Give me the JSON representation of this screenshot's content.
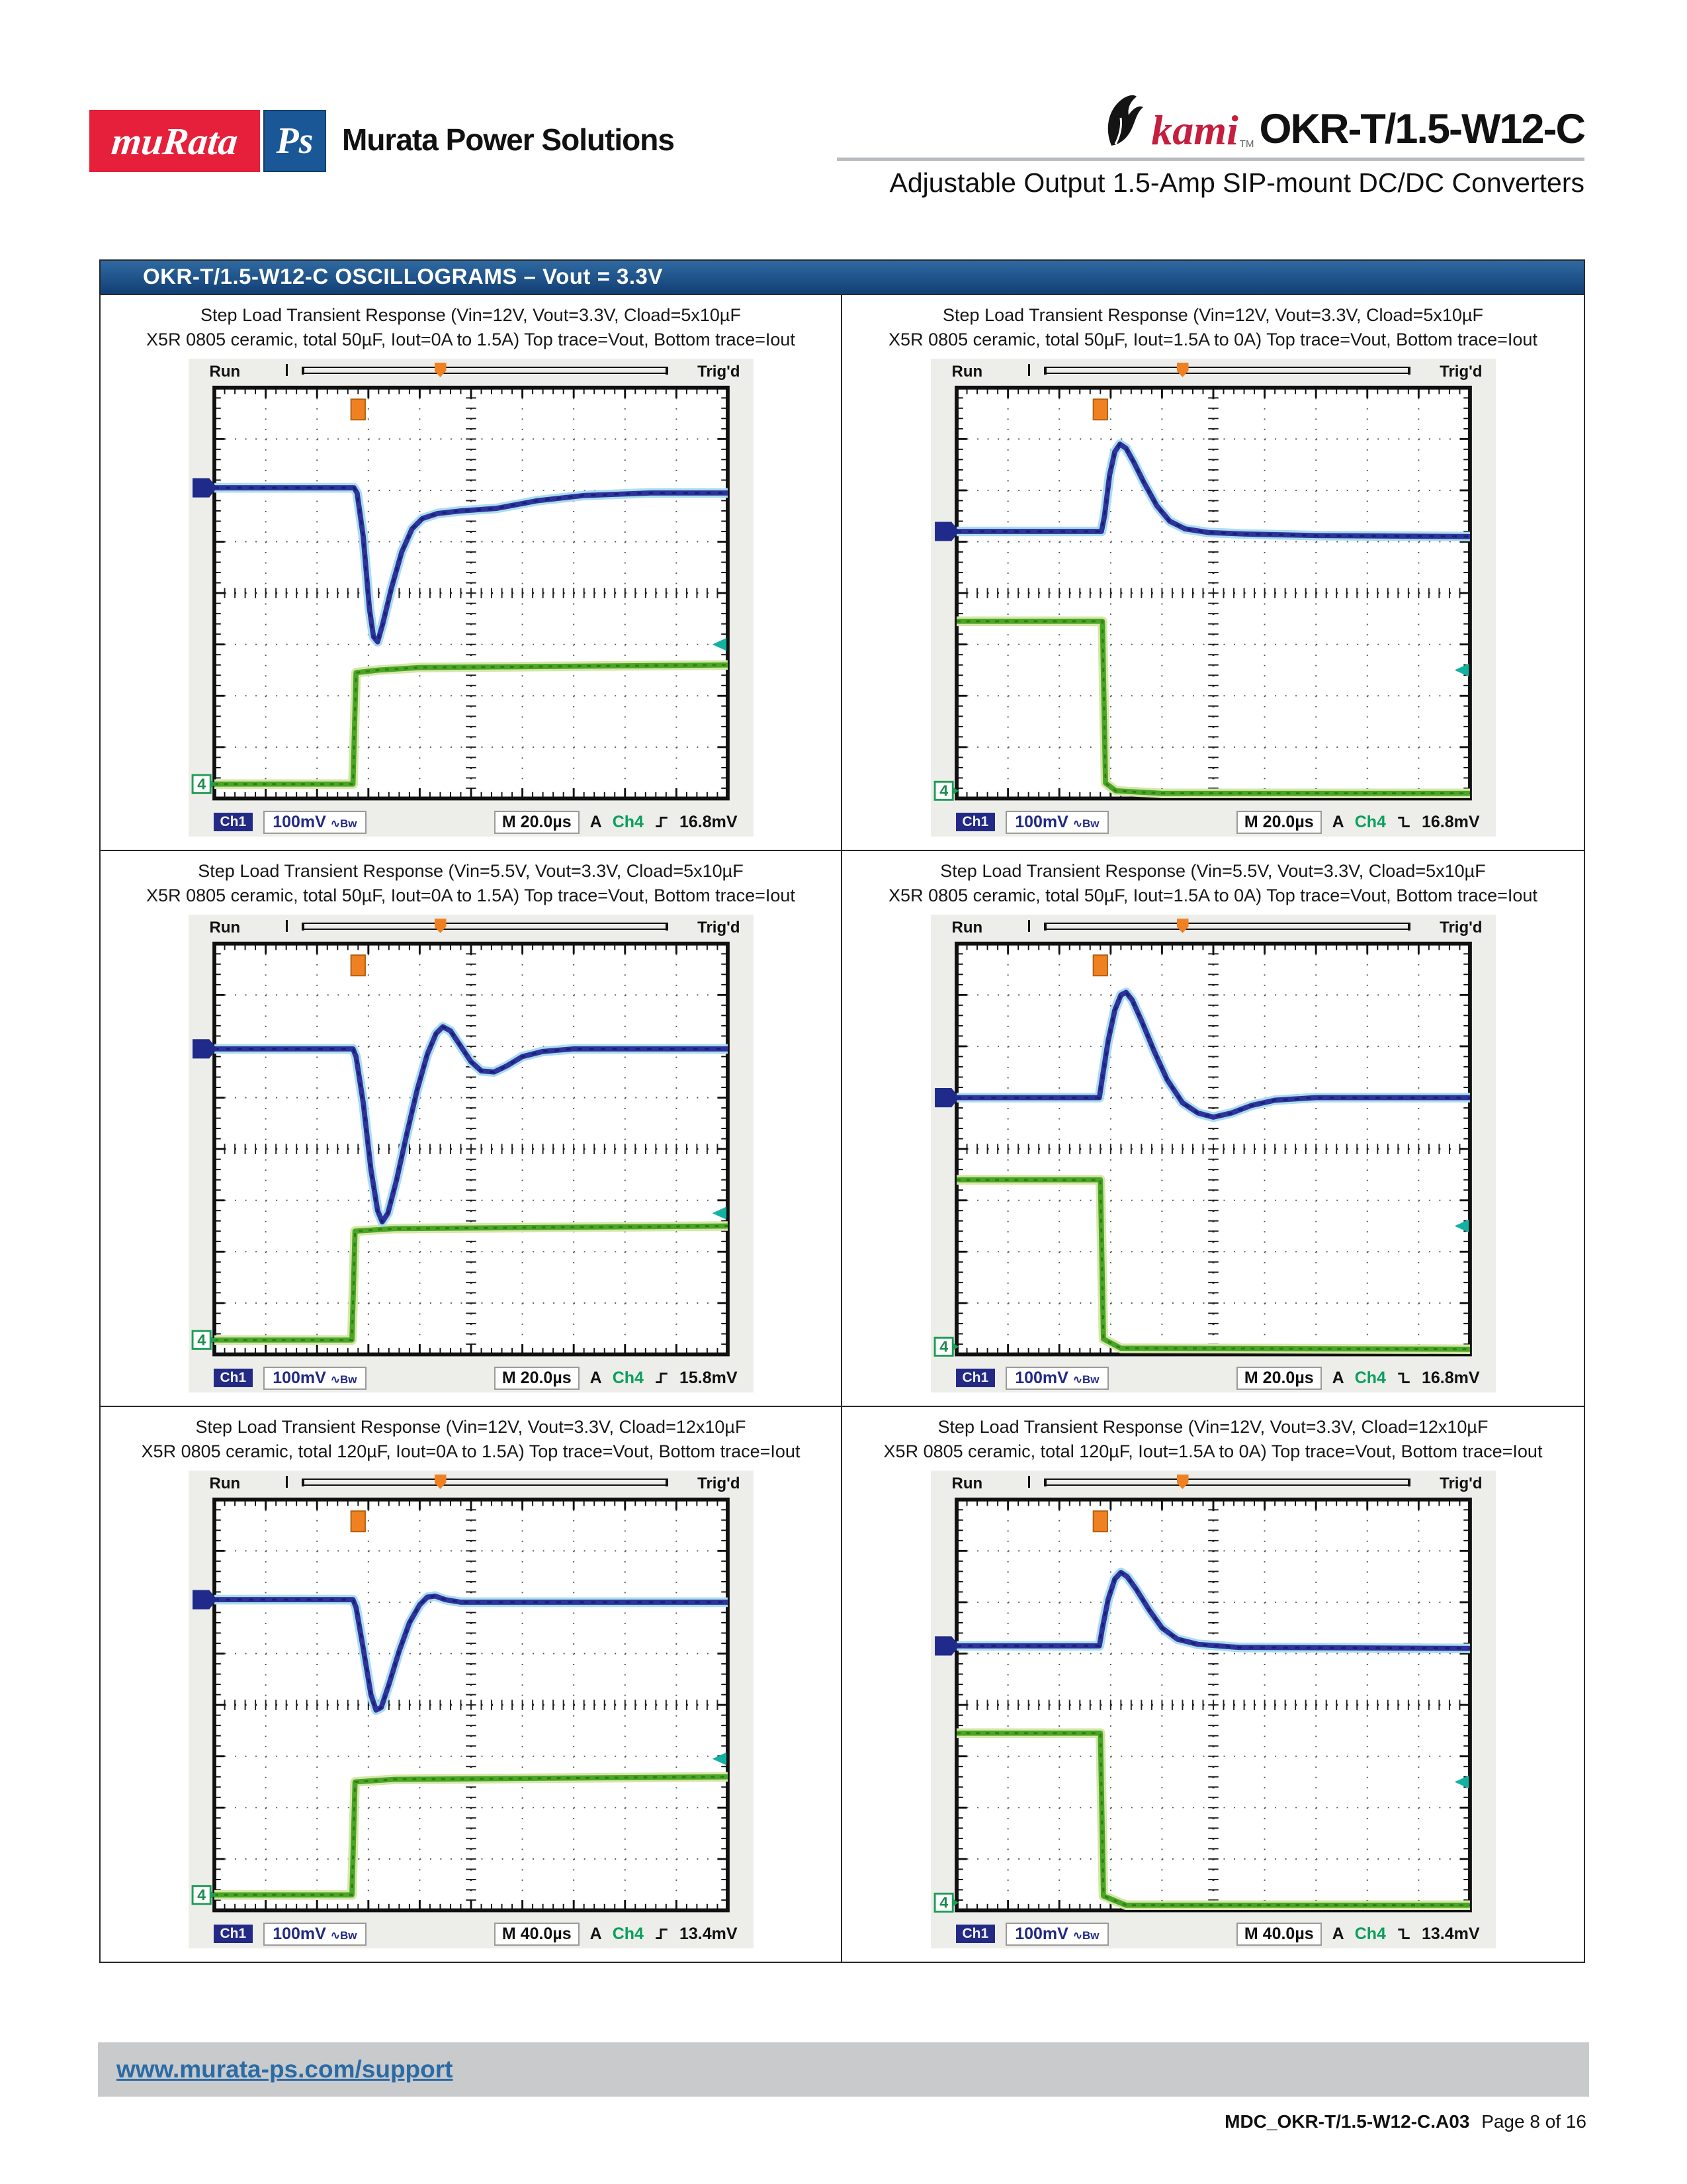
{
  "header": {
    "logo_murata_text": "muRata",
    "logo_ps_text": "Ps",
    "company": "Murata Power Solutions",
    "brand_okami": "kami",
    "brand_tm": "TM",
    "product": "OKR-T/1.5-W12-C",
    "subtitle": "Adjustable Output 1.5-Amp SIP-mount DC/DC Converters"
  },
  "banner": {
    "title": "OKR-T/1.5-W12-C OSCILLOGRAMS – Vout = 3.3V",
    "bg_color": "#123f74"
  },
  "scope_common": {
    "run": "Run",
    "trigd": "Trig'd",
    "ch1_box": "Ch1",
    "volt_label": "100mV",
    "coupling": "∿Bw",
    "a_label": "A",
    "ch4_label": "Ch4",
    "ch4_marker": "4"
  },
  "colors": {
    "murata_red": "#e6203a",
    "ps_blue": "#1a5796",
    "banner_blue": "#123f74",
    "okami_red": "#c41f3e",
    "link_blue": "#2a6ba5",
    "vout_trace_blue": "#2c339c",
    "iout_trace_green": "#49a526",
    "trigger_orange": "#f08122",
    "ch4_teal": "#12b2a2",
    "status_navy": "#232a85"
  },
  "panels": [
    {
      "title1": "Step Load Transient Response (Vin=12V, Vout=3.3V, Cload=5x10µF",
      "title2": "X5R 0805 ceramic, total 50µF, Iout=0A to 1.5A) Top trace=Vout, Bottom trace=Iout",
      "timebase": "M 20.0µs",
      "trigger_level": "16.8mV",
      "edge": "rising",
      "chart_data": {
        "type": "line",
        "x_unit": "div (20.0µs/div)",
        "y_unit": "div (Vout: 100mV/div)",
        "x_range": [
          0,
          10
        ],
        "y_range": [
          0,
          8
        ],
        "y_down": true,
        "vout": [
          [
            0,
            1.95
          ],
          [
            2.72,
            1.95
          ],
          [
            2.78,
            2.05
          ],
          [
            2.9,
            2.9
          ],
          [
            3.02,
            4.3
          ],
          [
            3.1,
            4.85
          ],
          [
            3.18,
            4.95
          ],
          [
            3.28,
            4.6
          ],
          [
            3.45,
            3.9
          ],
          [
            3.65,
            3.2
          ],
          [
            3.85,
            2.75
          ],
          [
            4.05,
            2.55
          ],
          [
            4.35,
            2.45
          ],
          [
            4.8,
            2.4
          ],
          [
            5.5,
            2.35
          ],
          [
            6.3,
            2.2
          ],
          [
            7.2,
            2.1
          ],
          [
            8.5,
            2.05
          ],
          [
            10,
            2.05
          ]
        ],
        "iout": [
          [
            0,
            7.72
          ],
          [
            2.7,
            7.72
          ],
          [
            2.76,
            5.55
          ],
          [
            3.2,
            5.5
          ],
          [
            4.0,
            5.45
          ],
          [
            10,
            5.4
          ]
        ],
        "trigger_x": 2.8,
        "ch4_marker_y": 7.72,
        "trig_level_arrow_y": 5.0
      }
    },
    {
      "title1": "Step Load Transient Response (Vin=12V, Vout=3.3V, Cload=5x10µF",
      "title2": "X5R 0805 ceramic, total 50µF, Iout=1.5A to 0A) Top trace=Vout, Bottom trace=Iout",
      "timebase": "M 20.0µs",
      "trigger_level": "16.8mV",
      "edge": "falling",
      "chart_data": {
        "type": "line",
        "x_unit": "div (20.0µs/div)",
        "y_unit": "div (Vout: 100mV/div)",
        "x_range": [
          0,
          10
        ],
        "y_range": [
          0,
          8
        ],
        "y_down": true,
        "vout": [
          [
            0,
            2.8
          ],
          [
            2.82,
            2.8
          ],
          [
            2.88,
            2.5
          ],
          [
            2.98,
            1.7
          ],
          [
            3.08,
            1.25
          ],
          [
            3.18,
            1.1
          ],
          [
            3.3,
            1.18
          ],
          [
            3.45,
            1.45
          ],
          [
            3.65,
            1.85
          ],
          [
            3.9,
            2.3
          ],
          [
            4.15,
            2.6
          ],
          [
            4.45,
            2.75
          ],
          [
            4.9,
            2.82
          ],
          [
            5.6,
            2.85
          ],
          [
            7,
            2.88
          ],
          [
            10,
            2.9
          ]
        ],
        "iout": [
          [
            0,
            4.55
          ],
          [
            2.84,
            4.55
          ],
          [
            2.9,
            7.7
          ],
          [
            3.1,
            7.85
          ],
          [
            4,
            7.9
          ],
          [
            10,
            7.9
          ]
        ],
        "trigger_x": 2.8,
        "ch4_marker_y": 7.85,
        "trig_level_arrow_y": 5.5
      }
    },
    {
      "title1": "Step Load Transient Response (Vin=5.5V, Vout=3.3V, Cload=5x10µF",
      "title2": "X5R 0805 ceramic, total 50µF, Iout=0A to 1.5A) Top trace=Vout, Bottom trace=Iout",
      "timebase": "M 20.0µs",
      "trigger_level": "15.8mV",
      "edge": "rising",
      "chart_data": {
        "type": "line",
        "x_unit": "div (20.0µs/div)",
        "y_unit": "div (Vout: 100mV/div)",
        "x_range": [
          0,
          10
        ],
        "y_range": [
          0,
          8
        ],
        "y_down": true,
        "vout": [
          [
            0,
            2.05
          ],
          [
            2.7,
            2.05
          ],
          [
            2.76,
            2.2
          ],
          [
            2.9,
            3.1
          ],
          [
            3.05,
            4.4
          ],
          [
            3.18,
            5.2
          ],
          [
            3.27,
            5.42
          ],
          [
            3.38,
            5.25
          ],
          [
            3.55,
            4.6
          ],
          [
            3.75,
            3.7
          ],
          [
            3.95,
            2.85
          ],
          [
            4.15,
            2.15
          ],
          [
            4.32,
            1.75
          ],
          [
            4.45,
            1.62
          ],
          [
            4.6,
            1.7
          ],
          [
            4.8,
            2.0
          ],
          [
            5.0,
            2.3
          ],
          [
            5.2,
            2.48
          ],
          [
            5.45,
            2.5
          ],
          [
            5.7,
            2.38
          ],
          [
            6.0,
            2.2
          ],
          [
            6.4,
            2.1
          ],
          [
            7,
            2.05
          ],
          [
            10,
            2.05
          ]
        ],
        "iout": [
          [
            0,
            7.72
          ],
          [
            2.68,
            7.72
          ],
          [
            2.74,
            5.6
          ],
          [
            3.5,
            5.55
          ],
          [
            10,
            5.5
          ]
        ],
        "trigger_x": 2.8,
        "ch4_marker_y": 7.72,
        "trig_level_arrow_y": 5.25
      }
    },
    {
      "title1": "Step Load Transient Response (Vin=5.5V, Vout=3.3V, Cload=5x10µF",
      "title2": "X5R 0805 ceramic, total 50µF, Iout=1.5A to 0A) Top trace=Vout, Bottom trace=Iout",
      "timebase": "M 20.0µs",
      "trigger_level": "16.8mV",
      "edge": "falling",
      "chart_data": {
        "type": "line",
        "x_unit": "div (20.0µs/div)",
        "y_unit": "div (Vout: 100mV/div)",
        "x_range": [
          0,
          10
        ],
        "y_range": [
          0,
          8
        ],
        "y_down": true,
        "vout": [
          [
            0,
            3.0
          ],
          [
            2.78,
            3.0
          ],
          [
            2.84,
            2.6
          ],
          [
            2.95,
            1.9
          ],
          [
            3.08,
            1.3
          ],
          [
            3.2,
            1.0
          ],
          [
            3.3,
            0.95
          ],
          [
            3.42,
            1.1
          ],
          [
            3.6,
            1.5
          ],
          [
            3.85,
            2.1
          ],
          [
            4.1,
            2.65
          ],
          [
            4.4,
            3.1
          ],
          [
            4.7,
            3.3
          ],
          [
            5.0,
            3.38
          ],
          [
            5.35,
            3.3
          ],
          [
            5.75,
            3.15
          ],
          [
            6.2,
            3.05
          ],
          [
            7,
            3.0
          ],
          [
            10,
            3.0
          ]
        ],
        "iout": [
          [
            0,
            4.6
          ],
          [
            2.8,
            4.6
          ],
          [
            2.86,
            7.7
          ],
          [
            3.2,
            7.88
          ],
          [
            10,
            7.9
          ]
        ],
        "trigger_x": 2.8,
        "ch4_marker_y": 7.85,
        "trig_level_arrow_y": 5.5
      }
    },
    {
      "title1": "Step Load Transient Response (Vin=12V, Vout=3.3V, Cload=12x10µF",
      "title2": "X5R 0805 ceramic, total 120µF, Iout=0A to 1.5A) Top trace=Vout, Bottom trace=Iout",
      "timebase": "M 40.0µs",
      "trigger_level": "13.4mV",
      "edge": "rising",
      "chart_data": {
        "type": "line",
        "x_unit": "div (40.0µs/div)",
        "y_unit": "div (Vout: 100mV/div)",
        "x_range": [
          0,
          10
        ],
        "y_range": [
          0,
          8
        ],
        "y_down": true,
        "vout": [
          [
            0,
            1.95
          ],
          [
            2.7,
            1.95
          ],
          [
            2.76,
            2.1
          ],
          [
            2.9,
            2.9
          ],
          [
            3.05,
            3.8
          ],
          [
            3.15,
            4.1
          ],
          [
            3.25,
            4.05
          ],
          [
            3.4,
            3.6
          ],
          [
            3.6,
            2.95
          ],
          [
            3.8,
            2.4
          ],
          [
            4.0,
            2.05
          ],
          [
            4.15,
            1.9
          ],
          [
            4.3,
            1.88
          ],
          [
            4.5,
            1.95
          ],
          [
            4.8,
            2.0
          ],
          [
            5.5,
            2.0
          ],
          [
            10,
            2.0
          ]
        ],
        "iout": [
          [
            0,
            7.7
          ],
          [
            2.68,
            7.7
          ],
          [
            2.74,
            5.5
          ],
          [
            3.5,
            5.45
          ],
          [
            10,
            5.4
          ]
        ],
        "trigger_x": 2.8,
        "ch4_marker_y": 7.7,
        "trig_level_arrow_y": 5.05
      }
    },
    {
      "title1": "Step Load Transient Response (Vin=12V, Vout=3.3V, Cload=12x10µF",
      "title2": "X5R 0805 ceramic, total 120µF, Iout=1.5A to 0A) Top trace=Vout, Bottom trace=Iout",
      "timebase": "M 40.0µs",
      "trigger_level": "13.4mV",
      "edge": "falling",
      "chart_data": {
        "type": "line",
        "x_unit": "div (40.0µs/div)",
        "y_unit": "div (Vout: 100mV/div)",
        "x_range": [
          0,
          10
        ],
        "y_range": [
          0,
          8
        ],
        "y_down": true,
        "vout": [
          [
            0,
            2.85
          ],
          [
            2.78,
            2.85
          ],
          [
            2.84,
            2.5
          ],
          [
            2.95,
            1.95
          ],
          [
            3.08,
            1.55
          ],
          [
            3.2,
            1.42
          ],
          [
            3.32,
            1.5
          ],
          [
            3.5,
            1.75
          ],
          [
            3.75,
            2.15
          ],
          [
            4.0,
            2.5
          ],
          [
            4.3,
            2.72
          ],
          [
            4.7,
            2.82
          ],
          [
            5.5,
            2.88
          ],
          [
            10,
            2.9
          ]
        ],
        "iout": [
          [
            0,
            4.55
          ],
          [
            2.8,
            4.55
          ],
          [
            2.86,
            7.72
          ],
          [
            3.3,
            7.9
          ],
          [
            10,
            7.9
          ]
        ],
        "trigger_x": 2.8,
        "ch4_marker_y": 7.85,
        "trig_level_arrow_y": 5.5
      }
    }
  ],
  "footer": {
    "link": "www.murata-ps.com/support",
    "doc": "MDC_OKR-T/1.5-W12-C.A03",
    "page": "Page 8 of 16"
  }
}
